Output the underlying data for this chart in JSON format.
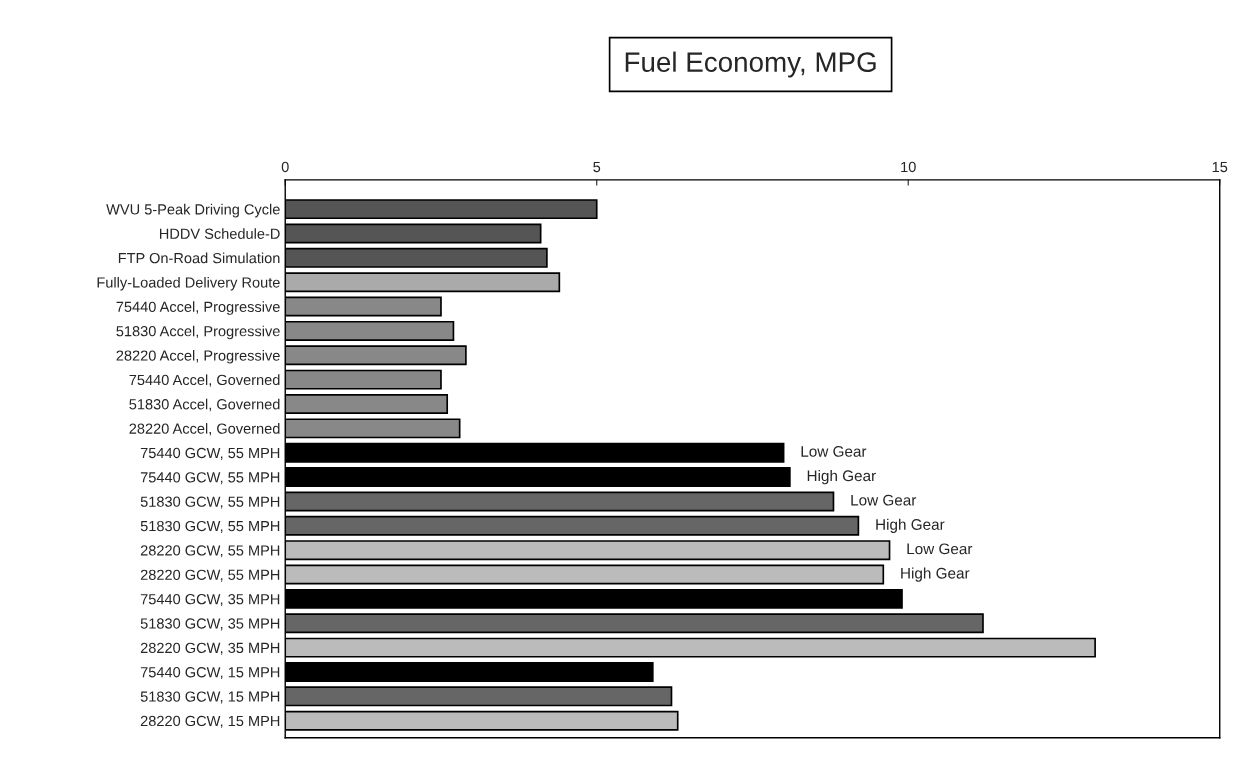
{
  "chart_data": {
    "type": "bar",
    "orientation": "horizontal",
    "title": "Fuel Economy, MPG",
    "categories": [
      "WVU 5-Peak Driving Cycle",
      "HDDV Schedule-D",
      "FTP On-Road Simulation",
      "Fully-Loaded Delivery Route",
      "75440 Accel, Progressive",
      "51830 Accel, Progressive",
      "28220 Accel, Progressive",
      "75440 Accel, Governed",
      "51830 Accel, Governed",
      "28220 Accel, Governed",
      "75440 GCW, 55 MPH",
      "75440 GCW, 55 MPH",
      "51830 GCW, 55 MPH",
      "51830 GCW, 55 MPH",
      "28220 GCW, 55 MPH",
      "28220 GCW, 55 MPH",
      "75440 GCW, 35 MPH",
      "51830 GCW, 35 MPH",
      "28220 GCW, 35 MPH",
      "75440 GCW, 15 MPH",
      "51830 GCW, 15 MPH",
      "28220 GCW, 15 MPH"
    ],
    "values": [
      5.0,
      4.1,
      4.2,
      4.4,
      2.5,
      2.7,
      2.9,
      2.5,
      2.6,
      2.8,
      8.0,
      8.1,
      8.8,
      9.2,
      9.7,
      9.6,
      9.9,
      11.2,
      13.0,
      5.9,
      6.2,
      6.3
    ],
    "value_labels": [
      null,
      null,
      null,
      null,
      null,
      null,
      null,
      null,
      null,
      null,
      "Low Gear",
      "High Gear",
      "Low Gear",
      "High Gear",
      "Low Gear",
      "High Gear",
      null,
      null,
      null,
      null,
      null,
      null
    ],
    "colors": [
      "#555555",
      "#555555",
      "#555555",
      "#aaaaaa",
      "#888888",
      "#888888",
      "#888888",
      "#888888",
      "#888888",
      "#888888",
      "#000000",
      "#000000",
      "#666666",
      "#666666",
      "#bbbbbb",
      "#bbbbbb",
      "#000000",
      "#666666",
      "#bbbbbb",
      "#000000",
      "#666666",
      "#bbbbbb"
    ],
    "xlim": [
      0,
      15
    ],
    "xticks": [
      0,
      5,
      10,
      15
    ],
    "grid": false,
    "legend": false
  }
}
